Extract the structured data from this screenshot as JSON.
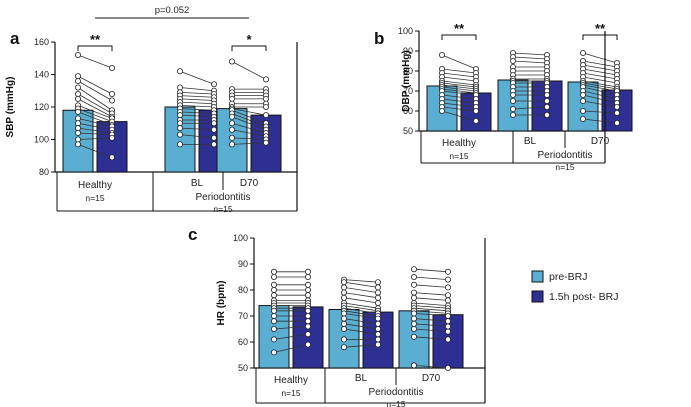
{
  "colors": {
    "pre": "#5aaed2",
    "post": "#2e2f93",
    "axis": "#111111",
    "line": "#333333"
  },
  "legend": {
    "pre": "pre-BRJ",
    "post": "1.5h post- BRJ"
  },
  "chart_data": [
    {
      "type": "bar",
      "panel": "a",
      "ylabel": "SBP (mmHg)",
      "ylim": [
        80,
        160
      ],
      "yticks": [
        80,
        100,
        120,
        140,
        160
      ],
      "categories": [
        "Healthy",
        "BL",
        "D70"
      ],
      "group_labels": {
        "healthy": "Healthy",
        "healthy_n": "n=15",
        "perio": "Periodontitis",
        "perio_n": "n=15"
      },
      "series": [
        {
          "name": "pre-BRJ",
          "values": [
            118,
            120,
            119
          ]
        },
        {
          "name": "1.5h post- BRJ",
          "values": [
            111,
            118,
            115
          ]
        }
      ],
      "points": [
        {
          "pre": [
            152,
            139,
            136,
            132,
            128,
            125,
            121,
            119,
            117,
            113,
            110,
            107,
            104,
            100,
            97
          ],
          "post": [
            144,
            128,
            124,
            118,
            116,
            114,
            113,
            111,
            109,
            108,
            106,
            104,
            103,
            101,
            89
          ]
        },
        {
          "pre": [
            142,
            132,
            129,
            127,
            125,
            123,
            121,
            119,
            117,
            115,
            112,
            110,
            107,
            103,
            97
          ],
          "post": [
            134,
            130,
            128,
            126,
            124,
            122,
            120,
            118,
            116,
            114,
            112,
            110,
            106,
            101,
            97
          ]
        },
        {
          "pre": [
            148,
            131,
            129,
            127,
            125,
            122,
            120,
            119,
            118,
            116,
            114,
            110,
            106,
            101,
            97
          ],
          "post": [
            137,
            131,
            129,
            127,
            125,
            122,
            120,
            115,
            110,
            108,
            106,
            104,
            102,
            100,
            98
          ]
        }
      ],
      "significance": [
        {
          "group": 0,
          "label": "**"
        },
        {
          "group": 2,
          "label": "*"
        }
      ],
      "comparison": {
        "from": 0,
        "to": 2,
        "label": "p=0.052"
      }
    },
    {
      "type": "bar",
      "panel": "b",
      "ylabel": "DBP (mmHg)",
      "ylim": [
        50,
        100
      ],
      "yticks": [
        50,
        60,
        70,
        80,
        90,
        100
      ],
      "categories": [
        "Healthy",
        "BL",
        "D70"
      ],
      "group_labels": {
        "healthy": "Healthy",
        "healthy_n": "n=15",
        "perio": "Periodontitis",
        "perio_n": "n=15"
      },
      "series": [
        {
          "name": "pre-BRJ",
          "values": [
            72.5,
            75.5,
            74.5
          ]
        },
        {
          "name": "1.5h post- BRJ",
          "values": [
            69,
            75,
            70.5
          ]
        }
      ],
      "points": [
        {
          "pre": [
            88,
            81,
            79,
            77,
            75,
            74,
            73,
            72,
            71,
            70,
            68,
            66,
            64,
            62,
            60
          ],
          "post": [
            81,
            79,
            77,
            75,
            73,
            72,
            71,
            70,
            69,
            68,
            66,
            64,
            62,
            60,
            55
          ]
        },
        {
          "pre": [
            89,
            87,
            85,
            82,
            80,
            78,
            76,
            75,
            74,
            72,
            70,
            68,
            65,
            61,
            58
          ],
          "post": [
            88,
            86,
            84,
            82,
            80,
            78,
            76,
            75,
            74,
            72,
            70,
            68,
            65,
            62,
            58
          ]
        },
        {
          "pre": [
            89,
            85,
            83,
            81,
            79,
            77,
            75,
            74,
            73,
            72,
            70,
            68,
            65,
            60,
            56
          ],
          "post": [
            84,
            82,
            80,
            78,
            76,
            74,
            72,
            71,
            70,
            68,
            66,
            64,
            62,
            59,
            54
          ]
        }
      ],
      "significance": [
        {
          "group": 0,
          "label": "**"
        },
        {
          "group": 2,
          "label": "**"
        }
      ],
      "comparison": null
    },
    {
      "type": "bar",
      "panel": "c",
      "ylabel": "HR (bpm)",
      "ylim": [
        50,
        100
      ],
      "yticks": [
        50,
        60,
        70,
        80,
        90,
        100
      ],
      "categories": [
        "Healthy",
        "BL",
        "D70"
      ],
      "group_labels": {
        "healthy": "Healthy",
        "healthy_n": "n=15",
        "perio": "Periodontitis",
        "perio_n": "n=15"
      },
      "series": [
        {
          "name": "pre-BRJ",
          "values": [
            74,
            72.5,
            72
          ]
        },
        {
          "name": "1.5h post- BRJ",
          "values": [
            73.5,
            71.5,
            70.5
          ]
        }
      ],
      "points": [
        {
          "pre": [
            87,
            85,
            82,
            80,
            78,
            76,
            75,
            74,
            73,
            72,
            70,
            68,
            65,
            61,
            56
          ],
          "post": [
            87,
            85,
            82,
            80,
            78,
            76,
            75,
            74,
            73,
            72,
            70,
            68,
            66,
            63,
            59
          ]
        },
        {
          "pre": [
            84,
            83,
            81,
            79,
            77,
            75,
            74,
            73,
            72,
            71,
            69,
            67,
            65,
            61,
            58
          ],
          "post": [
            83,
            81,
            79,
            77,
            75,
            73,
            72,
            71,
            70,
            69,
            67,
            65,
            63,
            61,
            59
          ]
        },
        {
          "pre": [
            88,
            85,
            82,
            79,
            77,
            75,
            74,
            73,
            72,
            71,
            69,
            67,
            65,
            62,
            51
          ],
          "post": [
            87,
            84,
            81,
            78,
            76,
            74,
            73,
            72,
            71,
            70,
            68,
            66,
            64,
            61,
            50
          ]
        }
      ],
      "significance": [],
      "comparison": null
    }
  ]
}
